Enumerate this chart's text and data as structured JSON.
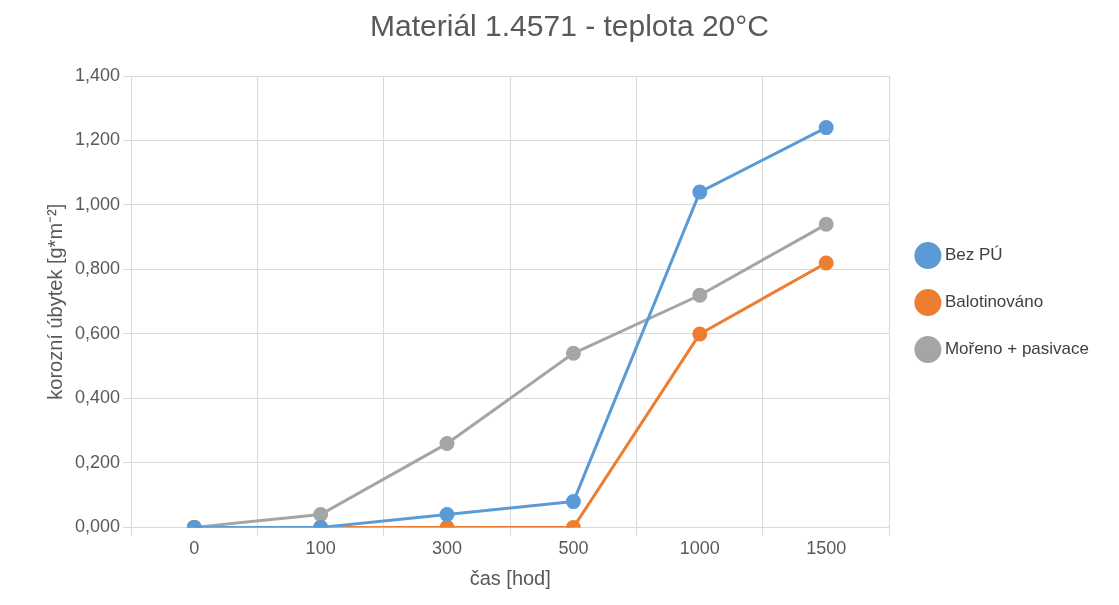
{
  "chart_data": {
    "type": "line",
    "title": "Materiál 1.4571 - teplota 20°C",
    "xlabel": "čas [hod]",
    "ylabel": "korozní úbytek [g*m⁻²]",
    "categories": [
      "0",
      "100",
      "300",
      "500",
      "1000",
      "1500"
    ],
    "series": [
      {
        "name": "Bez PÚ",
        "color": "#5b9bd5",
        "values": [
          0,
          0,
          0.04,
          0.08,
          1.04,
          1.24
        ]
      },
      {
        "name": "Balotinováno",
        "color": "#ed7d31",
        "values": [
          0,
          0,
          0,
          0,
          0.6,
          0.82
        ]
      },
      {
        "name": "Mořeno + pasivace",
        "color": "#a5a5a5",
        "values": [
          0,
          0.04,
          0.26,
          0.54,
          0.72,
          0.94
        ]
      }
    ],
    "ylim": [
      0,
      1.4
    ],
    "yticks": [
      {
        "value": 0,
        "label": "0,000"
      },
      {
        "value": 0.2,
        "label": "0,200"
      },
      {
        "value": 0.4,
        "label": "0,400"
      },
      {
        "value": 0.6,
        "label": "0,600"
      },
      {
        "value": 0.8,
        "label": "0,800"
      },
      {
        "value": 1,
        "label": "1,000"
      },
      {
        "value": 1.2,
        "label": "1,200"
      },
      {
        "value": 1.4,
        "label": "1,400"
      }
    ],
    "grid": true,
    "legend": "right",
    "marker": "circle",
    "line_style": "solid"
  }
}
